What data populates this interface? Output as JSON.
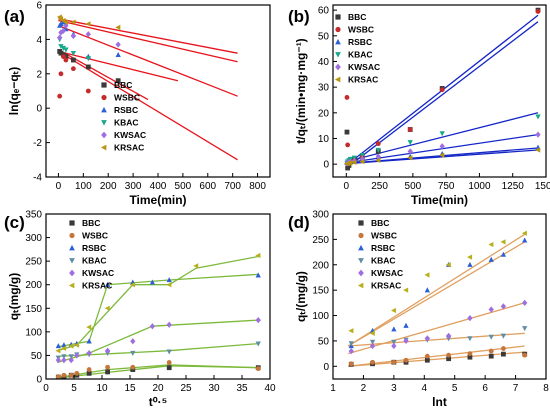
{
  "chart_data": [
    {
      "id": "a",
      "panel_label": "(a)",
      "type": "scatter",
      "xlabel": "Time(min)",
      "ylabel": "ln(qₑ−qₜ)",
      "xlim": [
        -50,
        850
      ],
      "ylim": [
        -4,
        6
      ],
      "xticks": [
        0,
        100,
        200,
        300,
        400,
        500,
        600,
        700,
        800
      ],
      "yticks": [
        -4,
        -2,
        0,
        2,
        4,
        6
      ],
      "legend_position": "center-right",
      "series": [
        {
          "name": "BBC",
          "color": "#3a3a3a",
          "marker": "square",
          "x": [
            5,
            10,
            20,
            30,
            60,
            120,
            240
          ],
          "y": [
            3.3,
            3.2,
            3.1,
            3.0,
            2.8,
            2.4,
            1.6
          ],
          "fit": [
            [
              0,
              3.4
            ],
            [
              360,
              0.5
            ]
          ],
          "fit_color": "#e8141d"
        },
        {
          "name": "WSBC",
          "color": "#c62b2b",
          "marker": "circle",
          "x": [
            5,
            10,
            20,
            30,
            60,
            120
          ],
          "y": [
            0.7,
            2.0,
            3.0,
            2.8,
            2.3,
            1.0
          ],
          "fit": [
            [
              0,
              3.3
            ],
            [
              720,
              -3.0
            ]
          ],
          "fit_color": "#e8141d"
        },
        {
          "name": "RSBC",
          "color": "#2d5fd6",
          "marker": "triangle-up",
          "x": [
            5,
            10,
            20,
            30,
            60,
            120,
            240
          ],
          "y": [
            4.8,
            4.9,
            5.0,
            4.6,
            4.3,
            3.0,
            3.1
          ],
          "fit": [
            [
              0,
              5.1
            ],
            [
              720,
              2.7
            ]
          ],
          "fit_color": "#e8141d"
        },
        {
          "name": "KBAC",
          "color": "#18a88c",
          "marker": "triangle-down",
          "x": [
            5,
            10,
            20,
            30,
            60,
            120
          ],
          "y": [
            4.0,
            3.6,
            3.5,
            3.4,
            3.2,
            2.9
          ],
          "fit": [
            [
              0,
              3.3
            ],
            [
              480,
              1.6
            ]
          ],
          "fit_color": "#e8141d"
        },
        {
          "name": "KWSAC",
          "color": "#9f6ee0",
          "marker": "diamond",
          "x": [
            5,
            10,
            20,
            30,
            60,
            120,
            240
          ],
          "y": [
            4.1,
            4.4,
            4.5,
            4.8,
            4.2,
            4.3,
            3.7
          ],
          "fit": [
            [
              0,
              4.8
            ],
            [
              720,
              0.7
            ]
          ],
          "fit_color": "#e8141d"
        },
        {
          "name": "KRSAC",
          "color": "#b8950f",
          "marker": "triangle-left",
          "x": [
            5,
            10,
            20,
            30,
            60,
            120,
            240
          ],
          "y": [
            5.3,
            5.2,
            5.1,
            5.0,
            5.0,
            4.9,
            4.7
          ],
          "fit": [
            [
              0,
              5.2
            ],
            [
              720,
              3.2
            ]
          ],
          "fit_color": "#e8141d"
        }
      ]
    },
    {
      "id": "b",
      "panel_label": "(b)",
      "type": "scatter",
      "xlabel": "Time(min)",
      "ylabel": "t/qₜ/(min•mg·mg⁻¹)",
      "xlim": [
        -100,
        1500
      ],
      "ylim": [
        -5,
        62
      ],
      "xticks": [
        0,
        250,
        500,
        750,
        1000,
        1250,
        1500
      ],
      "yticks": [
        0,
        10,
        20,
        30,
        40,
        50,
        60
      ],
      "legend_position": "top-left",
      "series": [
        {
          "name": "BBC",
          "color": "#3a3a3a",
          "marker": "square",
          "x": [
            5,
            10,
            20,
            30,
            60,
            120,
            240,
            480,
            720,
            1440
          ],
          "y": [
            12.5,
            -1.5,
            -0.5,
            1.0,
            2.0,
            2.5,
            5.0,
            13.5,
            29.5,
            60.0
          ],
          "fit": [
            [
              0,
              -1.5
            ],
            [
              1440,
              55.5
            ]
          ],
          "fit_color": "#1426c8"
        },
        {
          "name": "WSBC",
          "color": "#c62b2b",
          "marker": "circle",
          "x": [
            5,
            10,
            20,
            30,
            60,
            120,
            240,
            480,
            720,
            1440
          ],
          "y": [
            26.0,
            7.5,
            0.5,
            1.0,
            1.5,
            3.0,
            8.0,
            13.5,
            29.0,
            59.5
          ],
          "fit": [
            [
              0,
              -0.5
            ],
            [
              1440,
              58.0
            ]
          ],
          "fit_color": "#1426c8"
        },
        {
          "name": "RSBC",
          "color": "#2d5fd6",
          "marker": "triangle-up",
          "x": [
            5,
            10,
            20,
            30,
            60,
            120,
            240,
            480,
            720,
            1440
          ],
          "y": [
            0.5,
            0.8,
            1.0,
            1.2,
            1.3,
            1.5,
            2.0,
            3.0,
            4.0,
            6.5
          ],
          "fit": [
            [
              0,
              0.3
            ],
            [
              1440,
              6.3
            ]
          ],
          "fit_color": "#1426c8"
        },
        {
          "name": "KBAC",
          "color": "#18a88c",
          "marker": "triangle-down",
          "x": [
            5,
            10,
            20,
            30,
            60,
            120,
            240,
            480,
            720,
            1440
          ],
          "y": [
            0.5,
            1.0,
            1.5,
            2.0,
            2.5,
            3.5,
            5.5,
            8.5,
            12.0,
            18.5
          ],
          "fit": [
            [
              0,
              1.0
            ],
            [
              1440,
              20.0
            ]
          ],
          "fit_color": "#1426c8"
        },
        {
          "name": "KWSAC",
          "color": "#9f6ee0",
          "marker": "diamond",
          "x": [
            5,
            10,
            20,
            30,
            60,
            120,
            240,
            480,
            720,
            1440
          ],
          "y": [
            0.3,
            0.5,
            0.7,
            0.9,
            1.2,
            2.0,
            3.0,
            5.0,
            7.0,
            11.5
          ],
          "fit": [
            [
              0,
              0.5
            ],
            [
              1440,
              11.5
            ]
          ],
          "fit_color": "#1426c8"
        },
        {
          "name": "KRSAC",
          "color": "#b8950f",
          "marker": "triangle-left",
          "x": [
            5,
            10,
            20,
            30,
            60,
            120,
            240,
            480,
            720,
            1440
          ],
          "y": [
            0.2,
            0.3,
            0.4,
            0.5,
            0.7,
            1.0,
            1.5,
            2.5,
            3.5,
            5.5
          ],
          "fit": [
            [
              0,
              0.2
            ],
            [
              1440,
              5.5
            ]
          ],
          "fit_color": "#1426c8"
        }
      ]
    },
    {
      "id": "c",
      "panel_label": "(c)",
      "type": "scatter",
      "xlabel": "t⁰·⁵",
      "ylabel": "qₜ(mg/g)",
      "xlim": [
        0,
        40
      ],
      "ylim": [
        0,
        350
      ],
      "xticks": [
        0,
        5,
        10,
        15,
        20,
        25,
        30,
        35,
        40
      ],
      "yticks": [
        0,
        50,
        100,
        150,
        200,
        250,
        300,
        350
      ],
      "legend_position": "top-left",
      "series": [
        {
          "name": "BBC",
          "color": "#3a3a3a",
          "marker": "square",
          "x": [
            2.2,
            3.2,
            4.5,
            5.5,
            7.7,
            11.0,
            15.5,
            22.0,
            37.9
          ],
          "y": [
            4,
            5,
            8,
            8,
            12,
            15,
            20,
            24,
            24
          ],
          "fit": [
            [
              2,
              2
            ],
            [
              11,
              14
            ],
            [
              22,
              28
            ],
            [
              38,
              24
            ]
          ],
          "fit_color": "#7dba3c"
        },
        {
          "name": "WSBC",
          "color": "#c6763a",
          "marker": "circle",
          "x": [
            2.2,
            3.2,
            4.5,
            5.5,
            7.7,
            11.0,
            15.5,
            22.0,
            37.9
          ],
          "y": [
            5,
            8,
            8,
            12,
            20,
            25,
            25,
            35,
            22
          ],
          "fit": [
            [
              2,
              3
            ],
            [
              11,
              20
            ],
            [
              22,
              30
            ],
            [
              38,
              24
            ]
          ],
          "fit_color": "#7dba3c"
        },
        {
          "name": "RSBC",
          "color": "#2d5fd6",
          "marker": "triangle-up",
          "x": [
            2.2,
            3.2,
            4.5,
            5.5,
            7.7,
            11.0,
            15.5,
            19.0,
            22.0,
            37.9
          ],
          "y": [
            70,
            72,
            73,
            75,
            80,
            200,
            205,
            205,
            210,
            220
          ],
          "fit": [
            [
              2,
              68
            ],
            [
              7.7,
              80
            ],
            [
              11,
              200
            ],
            [
              22,
              210
            ],
            [
              38,
              222
            ]
          ],
          "fit_color": "#7dba3c"
        },
        {
          "name": "KBAC",
          "color": "#5e8fa6",
          "marker": "triangle-down",
          "x": [
            2.2,
            3.2,
            4.5,
            5.5,
            7.7,
            11.0,
            15.5,
            22.0,
            37.9
          ],
          "y": [
            45,
            48,
            48,
            52,
            52,
            55,
            55,
            58,
            75
          ],
          "fit": [
            [
              2,
              48
            ],
            [
              22,
              60
            ],
            [
              38,
              75
            ]
          ],
          "fit_color": "#7dba3c"
        },
        {
          "name": "KWSAC",
          "color": "#9f6ee0",
          "marker": "diamond",
          "x": [
            2.2,
            3.2,
            4.5,
            5.5,
            7.7,
            11.0,
            15.5,
            19.0,
            22.0,
            37.9
          ],
          "y": [
            40,
            40,
            40,
            50,
            55,
            60,
            80,
            112,
            115,
            125
          ],
          "fit": [
            [
              2,
              35
            ],
            [
              7.7,
              55
            ],
            [
              19,
              112
            ],
            [
              38,
              125
            ]
          ],
          "fit_color": "#7dba3c"
        },
        {
          "name": "KRSAC",
          "color": "#b8b01a",
          "marker": "triangle-left",
          "x": [
            2.2,
            3.2,
            4.5,
            5.5,
            7.7,
            11.0,
            15.5,
            22.0,
            26.8,
            37.9
          ],
          "y": [
            60,
            65,
            70,
            72,
            110,
            150,
            200,
            200,
            240,
            262
          ],
          "fit": [
            [
              2,
              60
            ],
            [
              5.5,
              72
            ],
            [
              15.5,
              200
            ],
            [
              22,
              200
            ],
            [
              26.8,
              235
            ],
            [
              38,
              260
            ]
          ],
          "fit_color": "#7dba3c"
        }
      ]
    },
    {
      "id": "d",
      "panel_label": "(d)",
      "type": "scatter",
      "xlabel": "lnt",
      "ylabel": "qₜ/(mg/g)",
      "xlim": [
        1,
        8
      ],
      "ylim": [
        -25,
        300
      ],
      "xticks": [
        1,
        2,
        3,
        4,
        5,
        6,
        7,
        8
      ],
      "yticks": [
        0,
        50,
        100,
        150,
        200,
        250,
        300
      ],
      "legend_position": "top-left",
      "series": [
        {
          "name": "BBC",
          "color": "#3a3a3a",
          "marker": "square",
          "x": [
            1.6,
            2.3,
            3.0,
            3.4,
            4.1,
            4.8,
            5.5,
            6.2,
            6.6,
            7.3
          ],
          "y": [
            4,
            5,
            8,
            8,
            12,
            15,
            18,
            20,
            24,
            24
          ],
          "fit": [
            [
              1.5,
              0
            ],
            [
              7.3,
              28
            ]
          ],
          "fit_color": "#e0a060"
        },
        {
          "name": "WSBC",
          "color": "#c6763a",
          "marker": "circle",
          "x": [
            1.6,
            2.3,
            3.0,
            3.4,
            4.1,
            4.8,
            5.5,
            6.2,
            6.6,
            7.3
          ],
          "y": [
            5,
            8,
            8,
            12,
            20,
            22,
            25,
            30,
            35,
            22
          ],
          "fit": [
            [
              1.5,
              0
            ],
            [
              7.3,
              40
            ]
          ],
          "fit_color": "#e0a060"
        },
        {
          "name": "RSBC",
          "color": "#2d5fd6",
          "marker": "triangle-up",
          "x": [
            1.6,
            2.3,
            3.0,
            3.4,
            4.1,
            4.8,
            5.5,
            6.2,
            6.6,
            7.3
          ],
          "y": [
            40,
            70,
            73,
            80,
            150,
            200,
            200,
            210,
            220,
            248
          ],
          "fit": [
            [
              1.5,
              40
            ],
            [
              7.3,
              245
            ]
          ],
          "fit_color": "#e0a060"
        },
        {
          "name": "KBAC",
          "color": "#5e8fa6",
          "marker": "triangle-down",
          "x": [
            1.6,
            2.3,
            3.0,
            3.4,
            4.1,
            4.8,
            5.5,
            6.2,
            6.6,
            7.3
          ],
          "y": [
            45,
            48,
            48,
            52,
            52,
            55,
            55,
            58,
            60,
            75
          ],
          "fit": [
            [
              1.5,
              40
            ],
            [
              7.3,
              65
            ]
          ],
          "fit_color": "#e0a060"
        },
        {
          "name": "KWSAC",
          "color": "#9f6ee0",
          "marker": "diamond",
          "x": [
            1.6,
            2.3,
            3.0,
            3.4,
            4.1,
            4.8,
            5.5,
            6.2,
            6.6,
            7.3
          ],
          "y": [
            30,
            40,
            40,
            50,
            55,
            60,
            95,
            112,
            118,
            125
          ],
          "fit": [
            [
              1.5,
              25
            ],
            [
              7.3,
              125
            ]
          ],
          "fit_color": "#e0a060"
        },
        {
          "name": "KRSAC",
          "color": "#b8b01a",
          "marker": "triangle-left",
          "x": [
            1.6,
            2.3,
            3.0,
            3.4,
            4.1,
            4.8,
            5.5,
            6.2,
            6.6,
            7.3
          ],
          "y": [
            70,
            65,
            110,
            150,
            180,
            200,
            215,
            240,
            245,
            262
          ],
          "fit": [
            [
              1.5,
              40
            ],
            [
              7.3,
              260
            ]
          ],
          "fit_color": "#e0a060"
        }
      ]
    }
  ]
}
